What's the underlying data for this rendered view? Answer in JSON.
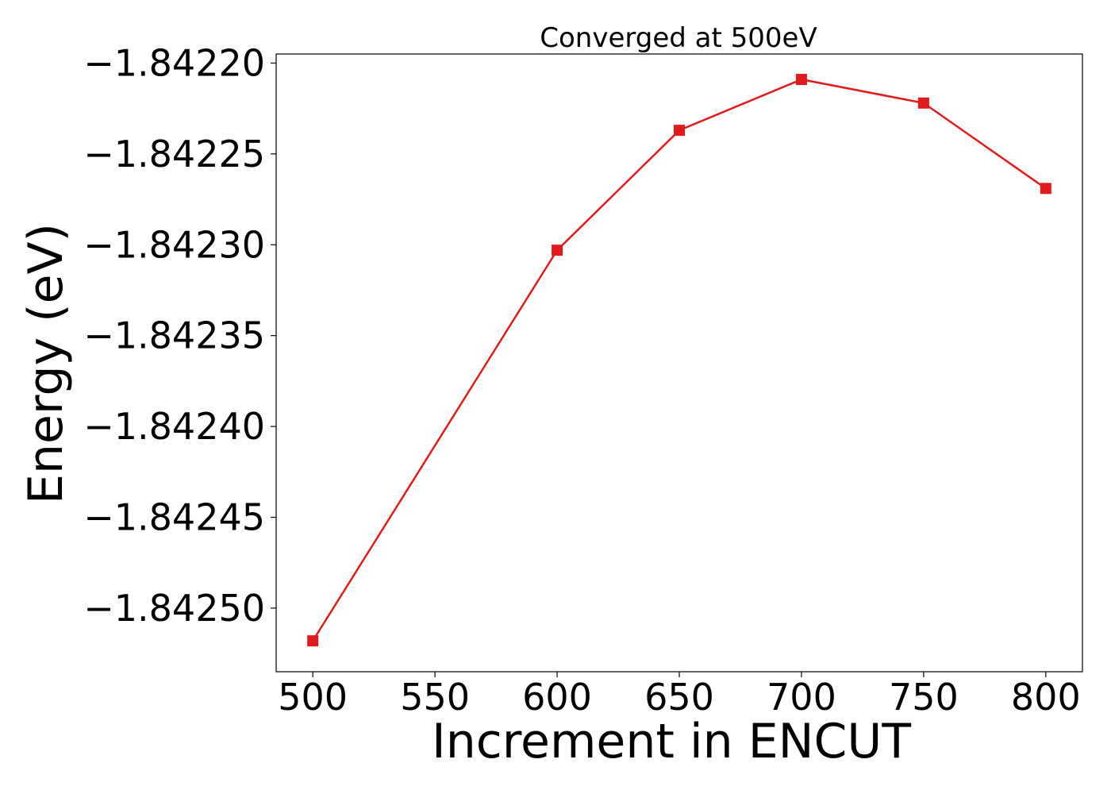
{
  "chart_data": {
    "type": "line",
    "title": "Converged at 500eV",
    "xlabel": "Increment in ENCUT",
    "ylabel": "Energy (eV)",
    "x": [
      500,
      600,
      650,
      700,
      750,
      800
    ],
    "series": [
      {
        "values": [
          -1.842518,
          -1.842303,
          -1.842237,
          -1.842209,
          -1.842222,
          -1.842269
        ],
        "color": "#e31a1c",
        "marker": "square"
      }
    ],
    "x_ticks": [
      500,
      550,
      600,
      650,
      700,
      750,
      800
    ],
    "x_tick_labels": [
      "500",
      "550",
      "600",
      "650",
      "700",
      "750",
      "800"
    ],
    "y_ticks": [
      -1.8422,
      -1.84225,
      -1.8423,
      -1.84235,
      -1.8424,
      -1.84245,
      -1.8425
    ],
    "y_tick_labels": [
      "−1.84220",
      "−1.84225",
      "−1.84230",
      "−1.84235",
      "−1.84240",
      "−1.84245",
      "−1.84250"
    ],
    "xlim": [
      485,
      815
    ],
    "ylim": [
      -1.842535,
      -1.842195
    ],
    "grid": false,
    "legend": false
  }
}
